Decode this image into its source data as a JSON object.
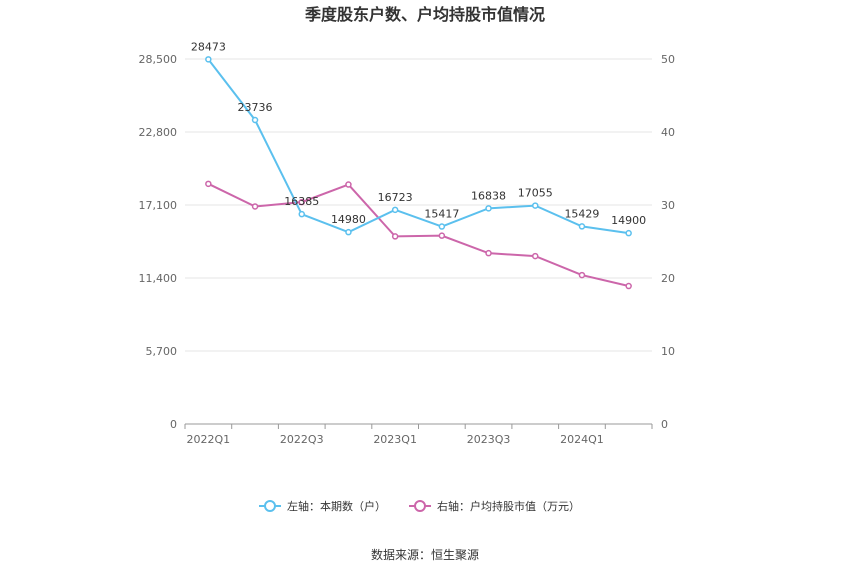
{
  "chart_data": {
    "type": "line",
    "title": "季度股东户数、户均持股市值情况",
    "source": "数据来源：恒生聚源",
    "x_tick_labels": [
      "2022Q1",
      "2022Q3",
      "2023Q1",
      "2023Q3",
      "2024Q1"
    ],
    "x": [
      "2022Q1",
      "2022Q2",
      "2022Q3",
      "2022Q4",
      "2023Q1",
      "2023Q2",
      "2023Q3",
      "2023Q4",
      "2024Q1",
      "2024Q2"
    ],
    "left_axis": {
      "ylim": [
        0,
        28500
      ],
      "ticks": [
        "0",
        "5,700",
        "11,400",
        "17,100",
        "22,800",
        "28,500"
      ]
    },
    "right_axis": {
      "ylim": [
        0,
        50
      ],
      "ticks": [
        "0",
        "10",
        "20",
        "30",
        "40",
        "50"
      ]
    },
    "grid": true,
    "legend_position": "bottom",
    "series": [
      {
        "name": "左轴：本期数（户）",
        "axis": "left",
        "color": "#5bc0ee",
        "values": [
          28473,
          23736,
          16385,
          14980,
          16723,
          15417,
          16838,
          17055,
          15429,
          14900
        ],
        "labels": [
          "28473",
          "23736",
          "16385",
          "14980",
          "16723",
          "15417",
          "16838",
          "17055",
          "15429",
          "14900"
        ]
      },
      {
        "name": "右轴：户均持股市值（万元）",
        "axis": "right",
        "color": "#cc66aa",
        "values": [
          32.9,
          29.8,
          30.4,
          32.8,
          25.7,
          25.8,
          23.4,
          23.0,
          20.4,
          18.9
        ]
      }
    ]
  }
}
